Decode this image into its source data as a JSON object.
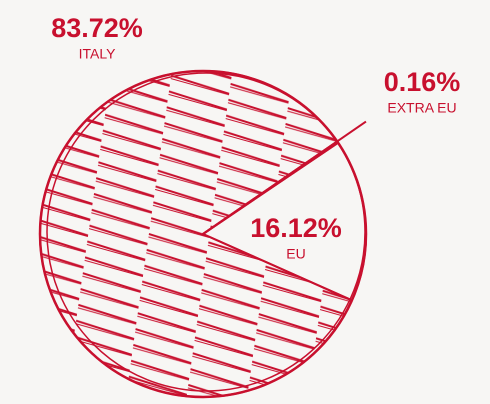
{
  "chart_data": {
    "type": "pie",
    "categories": [
      "ITALY",
      "EXTRA EU",
      "EU"
    ],
    "values": [
      83.72,
      0.16,
      16.12
    ],
    "value_labels": [
      "83.72%",
      "0.16%",
      "16.12%"
    ],
    "color": "#c8102e"
  }
}
